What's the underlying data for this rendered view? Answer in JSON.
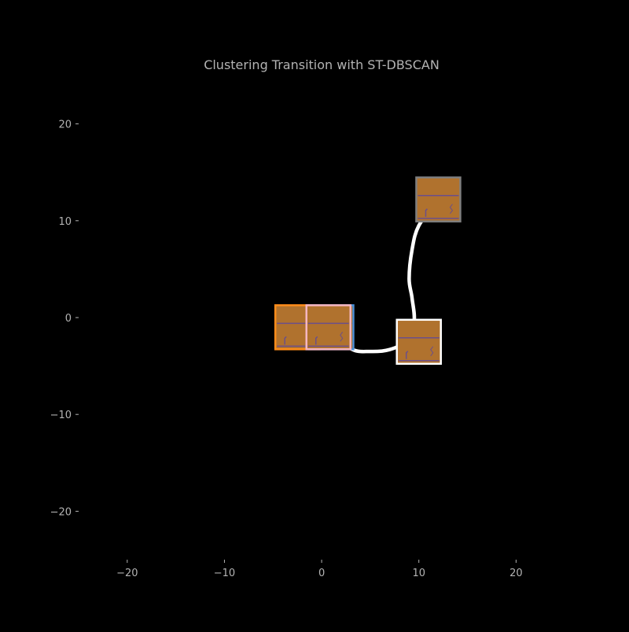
{
  "colors": {
    "background": "#000000",
    "text": "#b3b3b3",
    "path": "#ffffff",
    "thumbnail_fill": "#b0722e",
    "thumbnail_line": "#6b4f8a"
  },
  "chart_data": {
    "type": "scatter",
    "title": "Clustering Transition with ST-DBSCAN",
    "xlabel": "",
    "ylabel": "",
    "xlim": [
      -25,
      30
    ],
    "ylim": [
      -25,
      25
    ],
    "xticks": [
      -20,
      -10,
      0,
      10,
      20
    ],
    "yticks": [
      20,
      10,
      0,
      -10,
      -20
    ],
    "xtick_labels": [
      "−20",
      "−10",
      "0",
      "10",
      "20"
    ],
    "ytick_labels": [
      "20",
      "10",
      "0",
      "−10",
      "−20"
    ],
    "grid": false,
    "points": [
      {
        "x": -2.5,
        "y": -1.0,
        "frame_color": "#ff8c1a"
      },
      {
        "x": 1.0,
        "y": -1.0,
        "frame_color": "#4a90d9"
      },
      {
        "x": 0.7,
        "y": -1.0,
        "frame_color": "#f4b6c2"
      },
      {
        "x": 10.0,
        "y": -2.5,
        "frame_color": "#ffffff"
      },
      {
        "x": 12.0,
        "y": 12.2,
        "frame_color": "#7f7f7f"
      }
    ],
    "path": {
      "x": [
        1.0,
        3.0,
        5.0,
        7.0,
        8.5,
        9.5,
        9.3,
        9.0,
        9.3,
        10.0,
        12.0
      ],
      "y": [
        -1.0,
        -3.2,
        -3.5,
        -3.3,
        -2.5,
        -0.5,
        2.0,
        4.0,
        7.0,
        9.5,
        12.2
      ]
    }
  }
}
